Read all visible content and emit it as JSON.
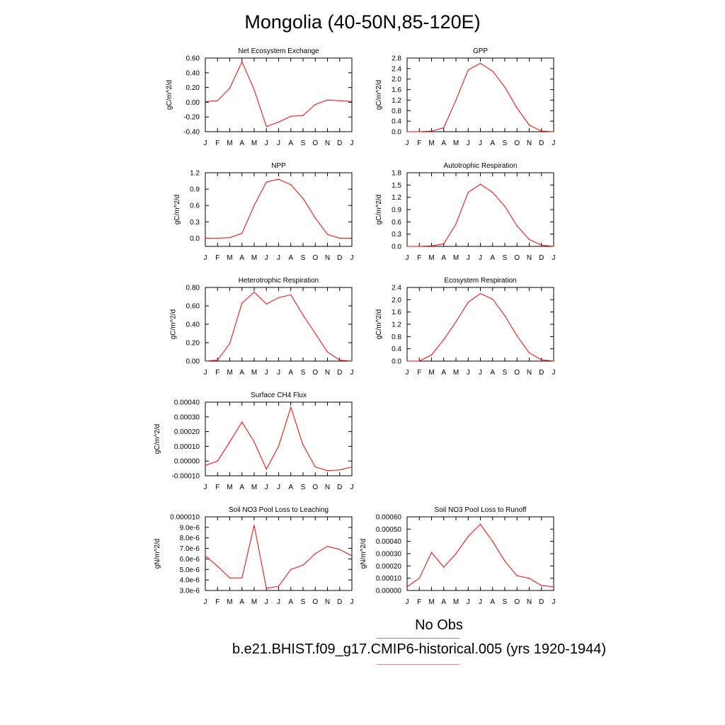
{
  "title": "Mongolia (40-50N,85-120E)",
  "legend": {
    "items": [
      {
        "label": "No Obs",
        "color": "#8080ff"
      },
      {
        "label": "b.e21.BHIST.f09_g17.CMIP6-historical.005 (yrs 1920-1944)",
        "color": "#ff6060"
      }
    ]
  },
  "chart_data": [
    {
      "type": "line",
      "title": "Net Ecosystem Exchange",
      "ylabel": "gC/m^2/d",
      "x": [
        "J",
        "F",
        "M",
        "A",
        "M",
        "J",
        "J",
        "A",
        "S",
        "O",
        "N",
        "D",
        "J"
      ],
      "ylim": [
        -0.4,
        0.6
      ],
      "yticks": [
        -0.4,
        -0.2,
        0.0,
        0.2,
        0.4,
        0.6
      ],
      "ytick_labels": [
        "-0.40",
        "-0.20",
        "0.00",
        "0.20",
        "0.40",
        "0.60"
      ],
      "series": [
        {
          "color": "#ff0000",
          "values": [
            0.01,
            0.02,
            0.19,
            0.55,
            0.17,
            -0.33,
            -0.27,
            -0.19,
            -0.18,
            -0.03,
            0.03,
            0.02,
            0.01
          ]
        }
      ]
    },
    {
      "type": "line",
      "title": "GPP",
      "ylabel": "gC/m^2/d",
      "x": [
        "J",
        "F",
        "M",
        "A",
        "M",
        "J",
        "J",
        "A",
        "S",
        "O",
        "N",
        "D",
        "J"
      ],
      "ylim": [
        0.0,
        2.8
      ],
      "yticks": [
        0.0,
        0.4,
        0.8,
        1.2,
        1.6,
        2.0,
        2.4,
        2.8
      ],
      "ytick_labels": [
        "0.0",
        "0.4",
        "0.8",
        "1.2",
        "1.6",
        "2.0",
        "2.4",
        "2.8"
      ],
      "series": [
        {
          "color": "#ff0000",
          "values": [
            0.0,
            0.0,
            0.02,
            0.15,
            1.2,
            2.35,
            2.6,
            2.3,
            1.7,
            0.9,
            0.25,
            0.02,
            0.0
          ]
        }
      ]
    },
    {
      "type": "line",
      "title": "NPP",
      "ylabel": "gC/m^2/d",
      "x": [
        "J",
        "F",
        "M",
        "A",
        "M",
        "J",
        "J",
        "A",
        "S",
        "O",
        "N",
        "D",
        "J"
      ],
      "ylim": [
        -0.15,
        1.2
      ],
      "yticks": [
        0.0,
        0.3,
        0.6,
        0.9,
        1.2
      ],
      "ytick_labels": [
        "0.0",
        "0.3",
        "0.6",
        "0.9",
        "1.2"
      ],
      "series": [
        {
          "color": "#ff0000",
          "values": [
            0.0,
            0.0,
            0.01,
            0.09,
            0.6,
            1.03,
            1.08,
            0.98,
            0.73,
            0.37,
            0.07,
            0.0,
            0.0
          ]
        }
      ]
    },
    {
      "type": "line",
      "title": "Autotrophic Respiration",
      "ylabel": "gC/m^2/d",
      "x": [
        "J",
        "F",
        "M",
        "A",
        "M",
        "J",
        "J",
        "A",
        "S",
        "O",
        "N",
        "D",
        "J"
      ],
      "ylim": [
        0.0,
        1.8
      ],
      "yticks": [
        0.0,
        0.3,
        0.6,
        0.9,
        1.2,
        1.5,
        1.8
      ],
      "ytick_labels": [
        "0.0",
        "0.3",
        "0.6",
        "0.9",
        "1.2",
        "1.5",
        "1.8"
      ],
      "series": [
        {
          "color": "#ff0000",
          "values": [
            0.0,
            0.0,
            0.01,
            0.06,
            0.55,
            1.32,
            1.52,
            1.32,
            0.98,
            0.5,
            0.17,
            0.03,
            0.0
          ]
        }
      ]
    },
    {
      "type": "line",
      "title": "Heterotrophic Respiration",
      "ylabel": "gC/m^2/d",
      "x": [
        "J",
        "F",
        "M",
        "A",
        "M",
        "J",
        "J",
        "A",
        "S",
        "O",
        "N",
        "D",
        "J"
      ],
      "ylim": [
        0.0,
        0.8
      ],
      "yticks": [
        0.0,
        0.2,
        0.4,
        0.6,
        0.8
      ],
      "ytick_labels": [
        "0.00",
        "0.20",
        "0.40",
        "0.60",
        "0.80"
      ],
      "series": [
        {
          "color": "#ff0000",
          "values": [
            0.0,
            0.01,
            0.19,
            0.63,
            0.75,
            0.62,
            0.69,
            0.72,
            0.5,
            0.3,
            0.1,
            0.01,
            0.0
          ]
        }
      ]
    },
    {
      "type": "line",
      "title": "Ecosystem Respiration",
      "ylabel": "gC/m^2/d",
      "x": [
        "J",
        "F",
        "M",
        "A",
        "M",
        "J",
        "J",
        "A",
        "S",
        "O",
        "N",
        "D",
        "J"
      ],
      "ylim": [
        0.0,
        2.4
      ],
      "yticks": [
        0.0,
        0.4,
        0.8,
        1.2,
        1.6,
        2.0,
        2.4
      ],
      "ytick_labels": [
        "0.0",
        "0.4",
        "0.8",
        "1.2",
        "1.6",
        "2.0",
        "2.4"
      ],
      "series": [
        {
          "color": "#ff0000",
          "values": [
            0.0,
            0.0,
            0.2,
            0.7,
            1.28,
            1.92,
            2.2,
            2.02,
            1.48,
            0.82,
            0.27,
            0.04,
            0.0
          ]
        }
      ]
    },
    {
      "type": "line",
      "title": "Surface CH4 Flux",
      "ylabel": "gC/m^2/d",
      "x": [
        "J",
        "F",
        "M",
        "A",
        "M",
        "J",
        "J",
        "A",
        "S",
        "O",
        "N",
        "D",
        "J"
      ],
      "ylim": [
        -0.0001,
        0.0004
      ],
      "yticks": [
        -0.0001,
        0.0,
        0.0001,
        0.0002,
        0.0003,
        0.0004
      ],
      "ytick_labels": [
        "-0.00010",
        "0.00000",
        "0.00010",
        "0.00020",
        "0.00030",
        "0.00040"
      ],
      "series": [
        {
          "color": "#ff0000",
          "values": [
            -3e-05,
            0.0,
            0.00013,
            0.000265,
            0.00013,
            -5.5e-05,
            0.0001,
            0.000365,
            0.00011,
            -4e-05,
            -6.5e-05,
            -6e-05,
            -4e-05
          ]
        }
      ]
    },
    {
      "type": "line",
      "title": "Soil NO3 Pool Loss to Leaching",
      "ylabel": "gN/m^2/d",
      "x": [
        "J",
        "F",
        "M",
        "A",
        "M",
        "J",
        "J",
        "A",
        "S",
        "O",
        "N",
        "D",
        "J"
      ],
      "ylim": [
        3e-06,
        1e-05
      ],
      "yticks": [
        3e-06,
        4e-06,
        5e-06,
        6e-06,
        7e-06,
        8e-06,
        9e-06,
        1e-05
      ],
      "ytick_labels": [
        "3.0e-6",
        "4.0e-6",
        "5.0e-6",
        "6.0e-6",
        "7.0e-6",
        "8.0e-6",
        "9.0e-6",
        "0.000010"
      ],
      "series": [
        {
          "color": "#ff0000",
          "values": [
            6.3e-06,
            5.3e-06,
            4.2e-06,
            4.2e-06,
            9.2e-06,
            3.2e-06,
            3.4e-06,
            5e-06,
            5.4e-06,
            6.5e-06,
            7.2e-06,
            6.9e-06,
            6.3e-06
          ]
        }
      ]
    },
    {
      "type": "line",
      "title": "Soil NO3 Pool Loss to Runoff",
      "ylabel": "gN/m^2/d",
      "x": [
        "J",
        "F",
        "M",
        "A",
        "M",
        "J",
        "J",
        "A",
        "S",
        "O",
        "N",
        "D",
        "J"
      ],
      "ylim": [
        0.0,
        0.0006
      ],
      "yticks": [
        0.0,
        0.0001,
        0.0002,
        0.0003,
        0.0004,
        0.0005,
        0.0006
      ],
      "ytick_labels": [
        "0.00000",
        "0.00010",
        "0.00020",
        "0.00030",
        "0.00040",
        "0.00050",
        "0.00060"
      ],
      "series": [
        {
          "color": "#ff0000",
          "values": [
            3e-05,
            0.0001,
            0.00031,
            0.00019,
            0.0003,
            0.00044,
            0.00054,
            0.0004,
            0.00024,
            0.00012,
            0.0001,
            4e-05,
            3e-05
          ]
        }
      ]
    }
  ]
}
